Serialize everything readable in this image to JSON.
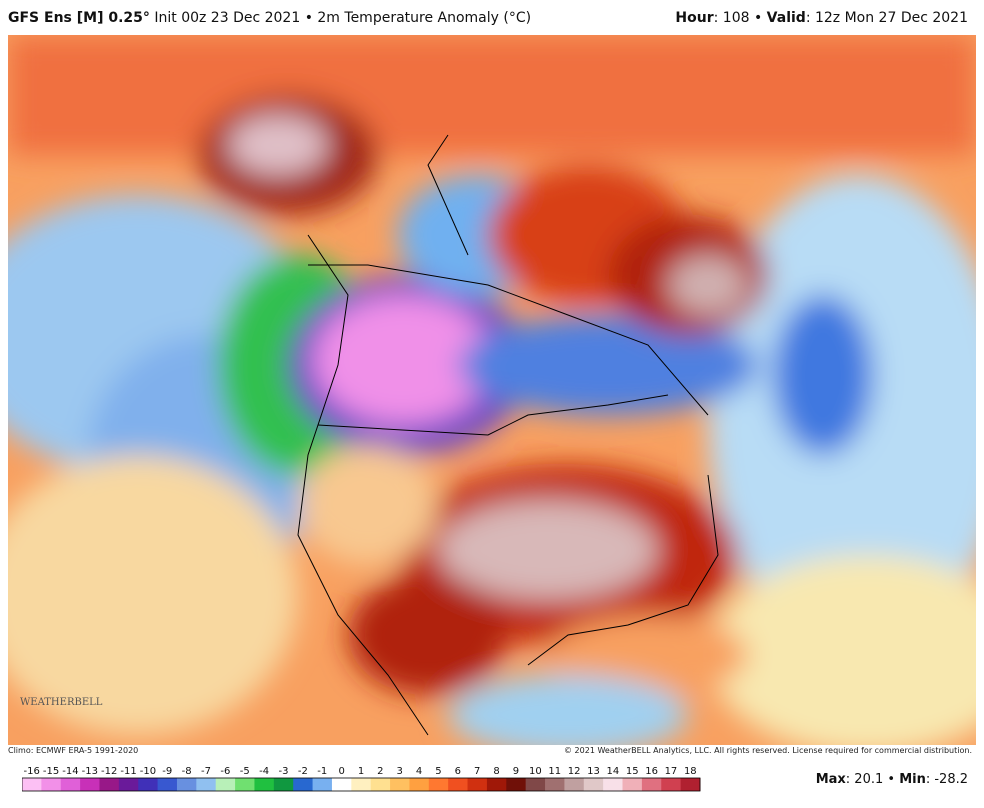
{
  "header": {
    "model": "GFS Ens [M] 0.25°",
    "info": "Init 00z 23 Dec 2021 • 2m Temperature Anomaly (°C)",
    "hour_label": "Hour",
    "hour_value": ": 108 • ",
    "valid_label": "Valid",
    "valid_value": ": 12z Mon 27 Dec 2021"
  },
  "map": {
    "logo": "WEATHERBELL",
    "climo": "Climo: ECMWF ERA-5 1991-2020",
    "copyright": "© 2021 WeatherBELL Analytics, LLC. All rights reserved. License required for commercial distribution."
  },
  "colorbar": {
    "labels": [
      "-16",
      "-15",
      "-14",
      "-13",
      "-12",
      "-11",
      "-10",
      "-9",
      "-8",
      "-7",
      "-6",
      "-5",
      "-4",
      "-3",
      "-2",
      "-1",
      "0",
      "1",
      "2",
      "3",
      "4",
      "5",
      "6",
      "7",
      "8",
      "9",
      "10",
      "11",
      "12",
      "13",
      "14",
      "15",
      "16",
      "17",
      "18"
    ],
    "colors": [
      "#fcc0f4",
      "#f290e8",
      "#e060d8",
      "#c830b8",
      "#981888",
      "#6a1a9a",
      "#4030b8",
      "#3858d0",
      "#6890e0",
      "#90c0f0",
      "#b8f0b8",
      "#70e070",
      "#20c040",
      "#109840",
      "#2868d0",
      "#78b0f0",
      "#ffffff",
      "#fff0c0",
      "#ffe090",
      "#ffc060",
      "#ffa040",
      "#ff7830",
      "#f05020",
      "#d03010",
      "#a01808",
      "#701008",
      "#804848",
      "#a07070",
      "#c0a0a0",
      "#e0c8c8",
      "#f8e0e8",
      "#f0b0b8",
      "#e07080",
      "#d04050",
      "#b02030"
    ]
  },
  "footer": {
    "max_label": "Max",
    "max_value": ": 20.1 • ",
    "min_label": "Min",
    "min_value": ": -28.2"
  }
}
